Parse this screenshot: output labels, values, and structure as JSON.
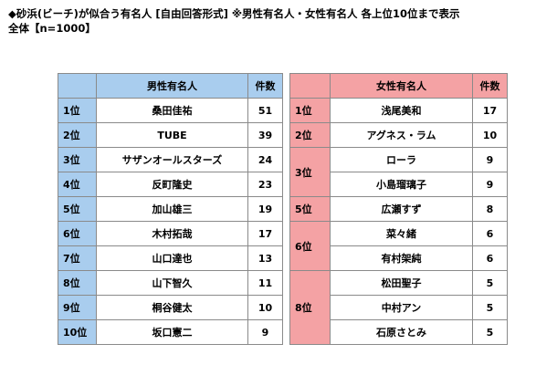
{
  "title": "◆砂浜(ビーチ)が似合う有名人 [自由回答形式] ※男性有名人・女性有名人 各上位10位まで表示",
  "subtitle": "全体【n=1000】",
  "male": {
    "header_name": "男性有名人",
    "header_count": "件数",
    "rows": [
      {
        "rank": "1位",
        "name": "桑田佳祐",
        "count": "51"
      },
      {
        "rank": "2位",
        "name": "TUBE",
        "count": "39"
      },
      {
        "rank": "3位",
        "name": "サザンオールスターズ",
        "count": "24"
      },
      {
        "rank": "4位",
        "name": "反町隆史",
        "count": "23"
      },
      {
        "rank": "5位",
        "name": "加山雄三",
        "count": "19"
      },
      {
        "rank": "6位",
        "name": "木村拓哉",
        "count": "17"
      },
      {
        "rank": "7位",
        "name": "山口達也",
        "count": "13"
      },
      {
        "rank": "8位",
        "name": "山下智久",
        "count": "11"
      },
      {
        "rank": "9位",
        "name": "桐谷健太",
        "count": "10"
      },
      {
        "rank": "10位",
        "name": "坂口憲二",
        "count": "9"
      }
    ]
  },
  "female": {
    "header_name": "女性有名人",
    "header_count": "件数",
    "rank_1": "1位",
    "rank_2": "2位",
    "rank_3": "3位",
    "rank_5": "5位",
    "rank_6": "6位",
    "rank_8": "8位",
    "rows": [
      {
        "name": "浅尾美和",
        "count": "17"
      },
      {
        "name": "アグネス・ラム",
        "count": "10"
      },
      {
        "name": "ローラ",
        "count": "9"
      },
      {
        "name": "小島瑠璃子",
        "count": "9"
      },
      {
        "name": "広瀬すず",
        "count": "8"
      },
      {
        "name": "菜々緒",
        "count": "6"
      },
      {
        "name": "有村架純",
        "count": "6"
      },
      {
        "name": "松田聖子",
        "count": "5"
      },
      {
        "name": "中村アン",
        "count": "5"
      },
      {
        "name": "石原さとみ",
        "count": "5"
      }
    ]
  }
}
